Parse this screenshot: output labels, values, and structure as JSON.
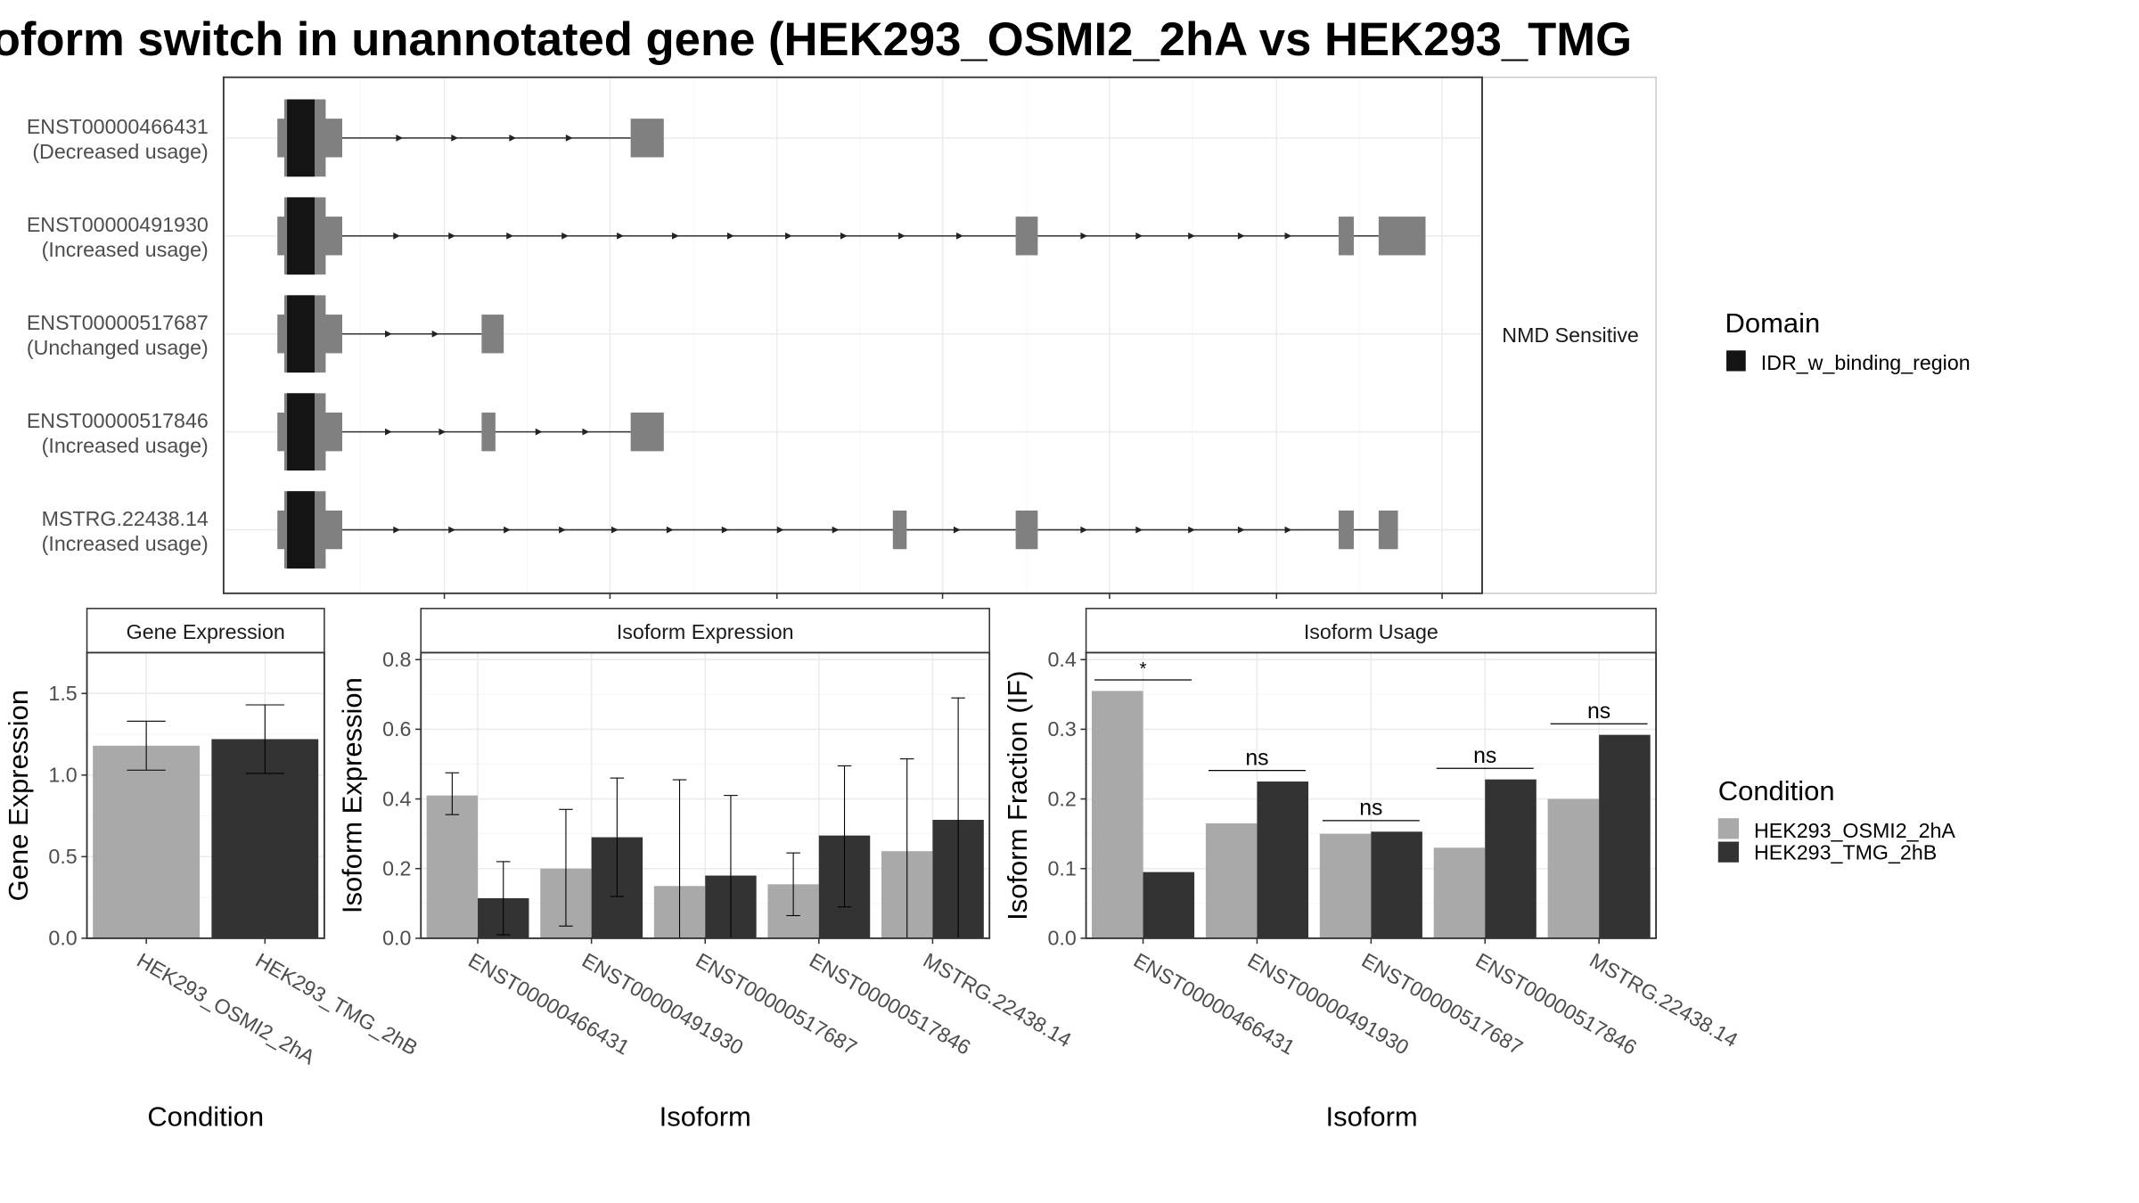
{
  "title": "oform switch in unannotated gene (HEK293_OSMI2_2hA vs HEK293_TMG",
  "structure_panel": {
    "facet_label": "NMD Sensitive",
    "transcripts": [
      {
        "id": "ENST00000466431",
        "usage": "(Decreased usage)"
      },
      {
        "id": "ENST00000491930",
        "usage": "(Increased usage)"
      },
      {
        "id": "ENST00000517687",
        "usage": "(Unchanged usage)"
      },
      {
        "id": "ENST00000517846",
        "usage": "(Increased usage)"
      },
      {
        "id": "MSTRG.22438.14",
        "usage": "(Increased usage)"
      }
    ]
  },
  "legend_domain": {
    "title": "Domain",
    "items": [
      "IDR_w_binding_region"
    ]
  },
  "legend_condition": {
    "title": "Condition",
    "items": [
      "HEK293_OSMI2_2hA",
      "HEK293_TMG_2hB"
    ]
  },
  "colors": {
    "cond_a": "#a9a9a9",
    "cond_b": "#333333",
    "exon": "#808080",
    "domain": "#141414"
  },
  "chart_data": [
    {
      "type": "bar",
      "title": "Gene Expression",
      "xlabel": "Condition",
      "ylabel": "Gene Expression",
      "ylim": [
        0,
        1.75
      ],
      "yticks": [
        "0.0",
        "0.5",
        "1.0",
        "1.5"
      ],
      "categories": [
        "HEK293_OSMI2_2hA",
        "HEK293_TMG_2hB"
      ],
      "values": [
        1.18,
        1.22
      ],
      "error_low": [
        1.03,
        1.01
      ],
      "error_high": [
        1.33,
        1.43
      ]
    },
    {
      "type": "bar",
      "title": "Isoform Expression",
      "xlabel": "Isoform",
      "ylabel": "Isoform Expression",
      "ylim": [
        0,
        0.82
      ],
      "yticks": [
        "0.0",
        "0.2",
        "0.4",
        "0.6",
        "0.8"
      ],
      "categories": [
        "ENST00000466431",
        "ENST00000491930",
        "ENST00000517687",
        "ENST00000517846",
        "MSTRG.22438.14"
      ],
      "series": [
        {
          "name": "HEK293_OSMI2_2hA",
          "values": [
            0.41,
            0.2,
            0.15,
            0.155,
            0.25
          ],
          "error_low": [
            0.355,
            0.035,
            0.0,
            0.065,
            0.0
          ],
          "error_high": [
            0.475,
            0.37,
            0.455,
            0.245,
            0.515
          ]
        },
        {
          "name": "HEK293_TMG_2hB",
          "values": [
            0.115,
            0.29,
            0.18,
            0.295,
            0.34
          ],
          "error_low": [
            0.01,
            0.12,
            0.0,
            0.09,
            0.0
          ],
          "error_high": [
            0.22,
            0.46,
            0.41,
            0.495,
            0.69
          ]
        }
      ]
    },
    {
      "type": "bar",
      "title": "Isoform Usage",
      "xlabel": "Isoform",
      "ylabel": "Isoform Fraction (IF)",
      "ylim": [
        0,
        0.41
      ],
      "yticks": [
        "0.0",
        "0.1",
        "0.2",
        "0.3",
        "0.4"
      ],
      "categories": [
        "ENST00000466431",
        "ENST00000491930",
        "ENST00000517687",
        "ENST00000517846",
        "MSTRG.22438.14"
      ],
      "series": [
        {
          "name": "HEK293_OSMI2_2hA",
          "values": [
            0.355,
            0.165,
            0.15,
            0.13,
            0.2
          ]
        },
        {
          "name": "HEK293_TMG_2hB",
          "values": [
            0.095,
            0.225,
            0.153,
            0.228,
            0.292
          ]
        }
      ],
      "significance": [
        "*",
        "ns",
        "ns",
        "ns",
        "ns"
      ]
    }
  ]
}
